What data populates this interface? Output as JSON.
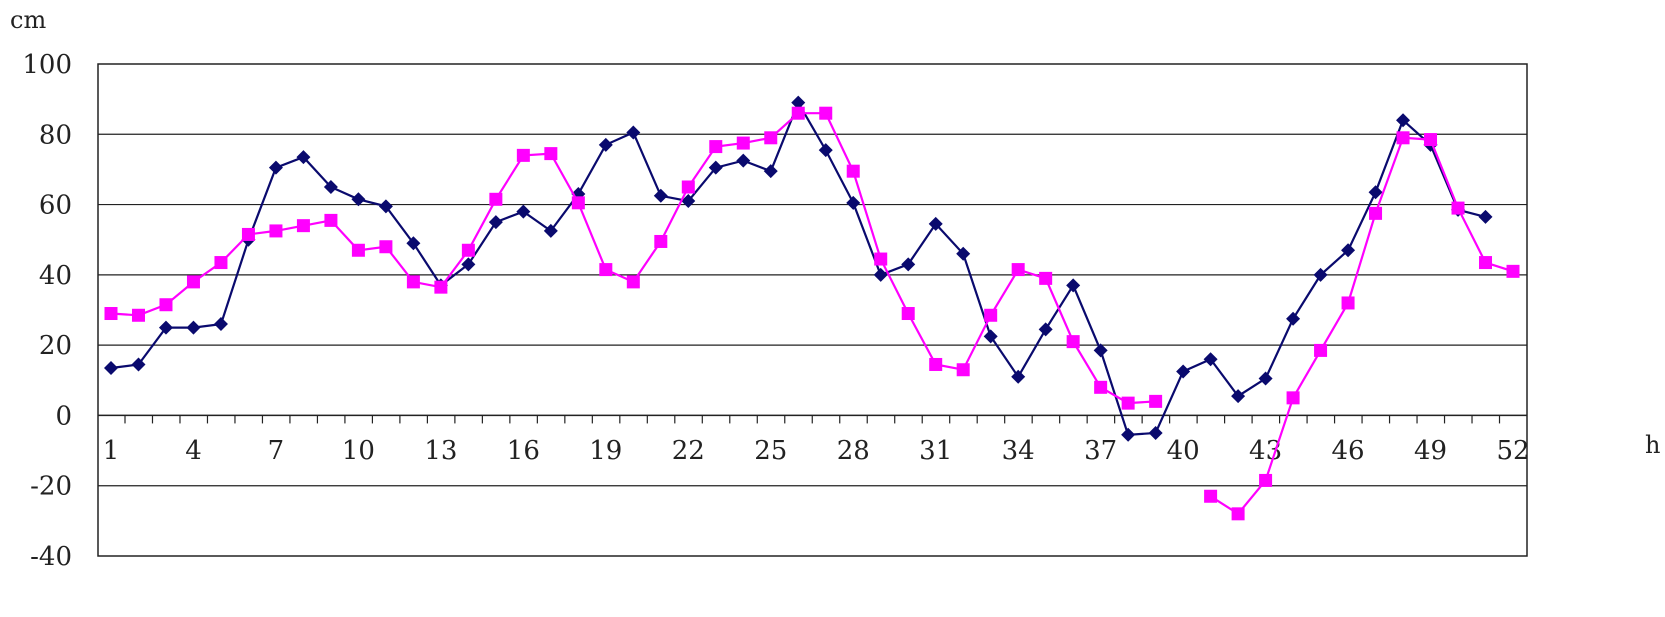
{
  "chart_data": {
    "type": "line",
    "y_unit": "cm",
    "x_unit": "h",
    "ylim": [
      -40,
      100
    ],
    "yticks": [
      -40,
      -20,
      0,
      20,
      40,
      60,
      80,
      100
    ],
    "xlim": [
      1,
      52
    ],
    "xtick_labels": [
      1,
      4,
      7,
      10,
      13,
      16,
      19,
      22,
      25,
      28,
      31,
      34,
      37,
      40,
      43,
      46,
      49,
      52
    ],
    "grid": "horizontal",
    "x": [
      1,
      2,
      3,
      4,
      5,
      6,
      7,
      8,
      9,
      10,
      11,
      12,
      13,
      14,
      15,
      16,
      17,
      18,
      19,
      20,
      21,
      22,
      23,
      24,
      25,
      26,
      27,
      28,
      29,
      30,
      31,
      32,
      33,
      34,
      35,
      36,
      37,
      38,
      39,
      40,
      41,
      42,
      43,
      44,
      45,
      46,
      47,
      48,
      49,
      50,
      51,
      52
    ],
    "series": [
      {
        "color": "#0a0a6e",
        "marker": "diamond",
        "values": [
          13.5,
          14.5,
          25,
          25,
          26,
          50,
          70.5,
          73.5,
          65,
          61.5,
          59.5,
          49,
          37,
          43,
          55,
          58,
          52.5,
          63,
          77,
          80.5,
          62.5,
          61,
          70.5,
          72.5,
          69.5,
          89,
          75.5,
          60.5,
          40,
          43,
          54.5,
          46,
          22.5,
          11,
          24.5,
          37,
          18.5,
          -5.5,
          -5,
          12.5,
          16,
          5.5,
          10.5,
          27.5,
          40,
          47,
          63.5,
          84,
          77,
          58.5,
          56.5,
          null
        ]
      },
      {
        "color": "#ff00ff",
        "marker": "square",
        "values": [
          29,
          28.5,
          31.5,
          38,
          43.5,
          51.5,
          52.5,
          54,
          55.5,
          47,
          48,
          38,
          36.5,
          47,
          61.5,
          74,
          74.5,
          60.5,
          41.5,
          38,
          49.5,
          65,
          76.5,
          77.5,
          79,
          86,
          86,
          69.5,
          44.5,
          29,
          14.5,
          13,
          28.5,
          41.5,
          39,
          21,
          8,
          3.5,
          4,
          null,
          -23,
          -28,
          -18.5,
          5,
          18.5,
          32,
          57.5,
          79,
          78.5,
          59,
          43.5,
          41
        ]
      }
    ]
  }
}
